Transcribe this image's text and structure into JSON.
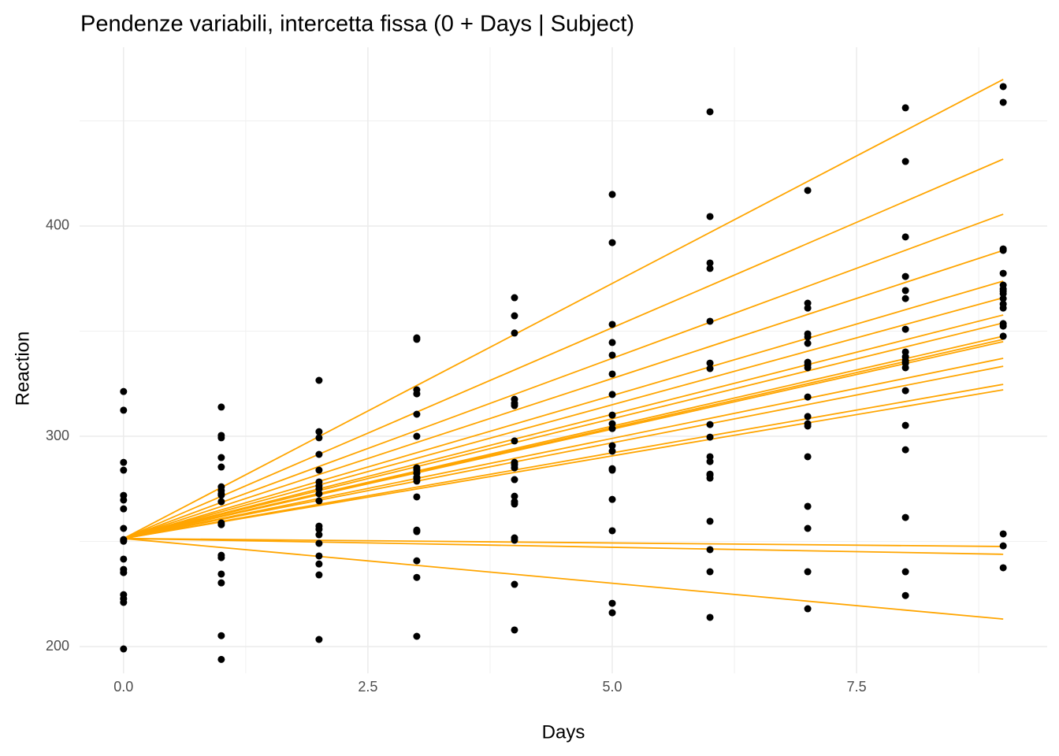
{
  "chart_data": {
    "type": "scatter",
    "title": "Pendenze variabili, intercetta fissa (0 + Days | Subject)",
    "x_label": "Days",
    "y_label": "Reaction",
    "xlim": [
      -0.45,
      9.45
    ],
    "ylim": [
      187.3,
      485
    ],
    "xticks": [
      {
        "value": 0,
        "label": "0.0"
      },
      2.5,
      {
        "value": 5,
        "label": "5.0"
      },
      7.5
    ],
    "yticks": [
      200,
      300,
      400
    ],
    "x_minor_grid": [
      1.25,
      3.75,
      6.25,
      8.75
    ],
    "y_minor_grid": [
      250,
      350,
      450
    ],
    "grid": true,
    "color": "#000000",
    "line_color": "#ffa500",
    "x": [
      0,
      0,
      0,
      0,
      0,
      0,
      0,
      0,
      0,
      0,
      0,
      0,
      0,
      0,
      0,
      0,
      0,
      0,
      1,
      1,
      1,
      1,
      1,
      1,
      1,
      1,
      1,
      1,
      1,
      1,
      1,
      1,
      1,
      1,
      1,
      1,
      2,
      2,
      2,
      2,
      2,
      2,
      2,
      2,
      2,
      2,
      2,
      2,
      2,
      2,
      2,
      2,
      2,
      2,
      3,
      3,
      3,
      3,
      3,
      3,
      3,
      3,
      3,
      3,
      3,
      3,
      3,
      3,
      3,
      3,
      3,
      3,
      4,
      4,
      4,
      4,
      4,
      4,
      4,
      4,
      4,
      4,
      4,
      4,
      4,
      4,
      4,
      4,
      4,
      4,
      5,
      5,
      5,
      5,
      5,
      5,
      5,
      5,
      5,
      5,
      5,
      5,
      5,
      5,
      5,
      5,
      5,
      5,
      6,
      6,
      6,
      6,
      6,
      6,
      6,
      6,
      6,
      6,
      6,
      6,
      6,
      6,
      6,
      6,
      6,
      6,
      7,
      7,
      7,
      7,
      7,
      7,
      7,
      7,
      7,
      7,
      7,
      7,
      7,
      7,
      7,
      7,
      7,
      7,
      8,
      8,
      8,
      8,
      8,
      8,
      8,
      8,
      8,
      8,
      8,
      8,
      8,
      8,
      8,
      8,
      8,
      8,
      9,
      9,
      9,
      9,
      9,
      9,
      9,
      9,
      9,
      9,
      9,
      9,
      9,
      9,
      9,
      9,
      9,
      9
    ],
    "y": [
      321.3,
      312.4,
      287.6,
      283.9,
      271.9,
      269.7,
      265.5,
      256.2,
      250.9,
      250.1,
      241.6,
      236.7,
      235.2,
      224.7,
      222.8,
      221.0,
      198.9,
      250.5,
      313.9,
      300.4,
      299.3,
      289.9,
      285.4,
      276.0,
      274.2,
      272.7,
      268.9,
      258.8,
      243.4,
      242.3,
      234.5,
      230.3,
      205.2,
      193.9,
      272.0,
      258.0,
      326.6,
      302.2,
      299.3,
      291.4,
      283.9,
      278.3,
      276.4,
      272.7,
      269.3,
      257.3,
      255.8,
      253.2,
      249.1,
      243.1,
      239.3,
      234.1,
      203.4,
      275.0,
      346.8,
      346.1,
      322.1,
      320.2,
      310.5,
      300.0,
      285.0,
      282.4,
      280.5,
      278.7,
      271.2,
      255.4,
      254.7,
      240.8,
      232.9,
      204.9,
      284.0,
      280.0,
      365.9,
      357.3,
      349.1,
      317.6,
      315.7,
      314.6,
      297.8,
      287.6,
      286.5,
      279.4,
      271.5,
      268.9,
      267.8,
      251.7,
      250.6,
      229.6,
      207.9,
      285.0,
      415.0,
      392.1,
      353.2,
      344.6,
      338.6,
      329.6,
      319.9,
      310.1,
      306.0,
      303.7,
      295.5,
      292.9,
      284.6,
      283.9,
      270.0,
      255.1,
      220.6,
      216.1,
      454.3,
      404.5,
      382.4,
      379.8,
      354.7,
      334.8,
      332.2,
      305.6,
      299.6,
      290.3,
      288.0,
      281.6,
      280.1,
      259.6,
      246.1,
      235.6,
      213.9,
      282.0,
      416.9,
      363.3,
      361.0,
      348.7,
      347.2,
      344.2,
      335.2,
      332.6,
      318.7,
      309.4,
      304.9,
      290.3,
      266.7,
      256.2,
      235.6,
      218.0,
      306.0,
      334.0,
      456.2,
      430.7,
      394.8,
      376.0,
      369.3,
      365.5,
      350.9,
      340.1,
      337.8,
      334.8,
      332.6,
      321.7,
      305.2,
      293.6,
      261.4,
      235.6,
      224.3,
      336.0,
      466.3,
      458.8,
      389.1,
      388.4,
      377.5,
      371.9,
      370.0,
      367.8,
      365.5,
      362.9,
      353.6,
      352.4,
      347.6,
      253.6,
      247.9,
      237.5,
      369.0,
      361.0
    ],
    "lines": [
      {
        "x": [
          0,
          9
        ],
        "values": [
          251.4,
          469.7
        ]
      },
      {
        "x": [
          0,
          9
        ],
        "values": [
          251.4,
          431.8
        ]
      },
      {
        "x": [
          0,
          9
        ],
        "values": [
          251.4,
          405.6
        ]
      },
      {
        "x": [
          0,
          9
        ],
        "values": [
          251.4,
          388.4
        ]
      },
      {
        "x": [
          0,
          9
        ],
        "values": [
          251.4,
          373.8
        ]
      },
      {
        "x": [
          0,
          9
        ],
        "values": [
          251.4,
          365.9
        ]
      },
      {
        "x": [
          0,
          9
        ],
        "values": [
          251.4,
          357.7
        ]
      },
      {
        "x": [
          0,
          9
        ],
        "values": [
          251.4,
          353.9
        ]
      },
      {
        "x": [
          0,
          9
        ],
        "values": [
          251.4,
          347.6
        ]
      },
      {
        "x": [
          0,
          9
        ],
        "values": [
          251.4,
          346.1
        ]
      },
      {
        "x": [
          0,
          9
        ],
        "values": [
          251.4,
          345.0
        ]
      },
      {
        "x": [
          0,
          9
        ],
        "values": [
          251.4,
          337.1
        ]
      },
      {
        "x": [
          0,
          9
        ],
        "values": [
          251.4,
          333.3
        ]
      },
      {
        "x": [
          0,
          9
        ],
        "values": [
          251.4,
          324.7
        ]
      },
      {
        "x": [
          0,
          9
        ],
        "values": [
          251.4,
          322.1
        ]
      },
      {
        "x": [
          0,
          9
        ],
        "values": [
          251.4,
          247.6
        ]
      },
      {
        "x": [
          0,
          9
        ],
        "values": [
          251.4,
          243.9
        ]
      },
      {
        "x": [
          0,
          9
        ],
        "values": [
          251.4,
          213.1
        ]
      }
    ]
  }
}
